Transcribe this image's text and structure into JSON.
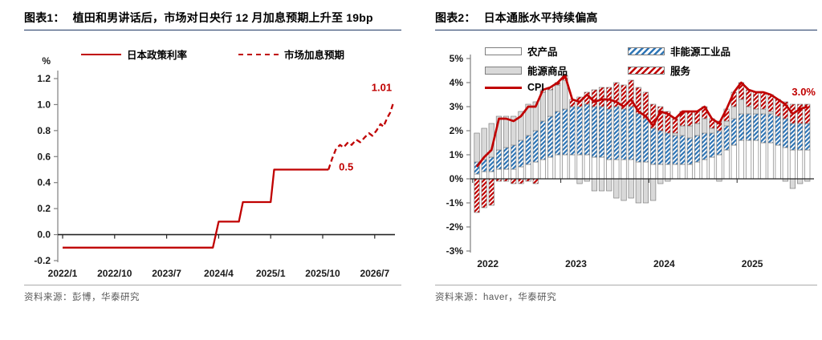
{
  "colors": {
    "red": "#C00000",
    "hatch_blue": "#2E75B6",
    "bar_gray": "#D9D9D9",
    "bar_border": "#7F7F7F",
    "axis_gray": "#808080",
    "zero_line": "#262626",
    "title_rule": "#1F3864",
    "source_text": "#595959",
    "tick_text": "#1A1A1A"
  },
  "panels": {
    "left": {
      "figure_label": "图表1：",
      "title": "植田和男讲话后，市场对日央行 12 月加息预期上升至 19bp",
      "legend": [
        {
          "label": "日本政策利率",
          "style": "solid"
        },
        {
          "label": "市场加息预期",
          "style": "dashed"
        }
      ],
      "source": "资料来源：彭博，华泰研究"
    },
    "right": {
      "figure_label": "图表2：",
      "title": "日本通胀水平持续偏高",
      "legend": [
        {
          "label": "农产品",
          "style": "white"
        },
        {
          "label": "非能源工业品",
          "style": "hatch-blue"
        },
        {
          "label": "能源商品",
          "style": "gray"
        },
        {
          "label": "服务",
          "style": "hatch-red"
        },
        {
          "label": "CPI",
          "style": "line"
        }
      ],
      "source": "资料来源：haver，华泰研究"
    }
  },
  "chart_data": [
    {
      "type": "line",
      "title": "植田和男讲话后，市场对日央行 12 月加息预期上升至 19bp",
      "ylabel": "%",
      "ylim": [
        -0.2,
        1.2
      ],
      "ytick_step": 0.2,
      "grid": false,
      "x_unit": "months since 2022/1",
      "xticks": [
        {
          "m": 0,
          "label": "2022/1"
        },
        {
          "m": 9,
          "label": "2022/10"
        },
        {
          "m": 18,
          "label": "2023/7"
        },
        {
          "m": 27,
          "label": "2024/4"
        },
        {
          "m": 36,
          "label": "2025/1"
        },
        {
          "m": 45,
          "label": "2025/10"
        },
        {
          "m": 54,
          "label": "2026/7"
        }
      ],
      "series": [
        {
          "name": "日本政策利率",
          "style": "solid",
          "color": "#C00000",
          "points": [
            [
              0,
              -0.1
            ],
            [
              26,
              -0.1
            ],
            [
              27,
              0.1
            ],
            [
              30.5,
              0.1
            ],
            [
              31.2,
              0.25
            ],
            [
              36,
              0.25
            ],
            [
              36.6,
              0.5
            ],
            [
              46,
              0.5
            ]
          ]
        },
        {
          "name": "市场加息预期",
          "style": "dashed",
          "color": "#C00000",
          "points": [
            [
              46,
              0.5
            ],
            [
              46.6,
              0.58
            ],
            [
              47.3,
              0.66
            ],
            [
              48,
              0.69
            ],
            [
              48.6,
              0.67
            ],
            [
              49.4,
              0.71
            ],
            [
              50,
              0.69
            ],
            [
              50.8,
              0.73
            ],
            [
              51.5,
              0.71
            ],
            [
              52.3,
              0.75
            ],
            [
              53,
              0.78
            ],
            [
              53.6,
              0.76
            ],
            [
              54.3,
              0.8
            ],
            [
              55,
              0.85
            ],
            [
              55.5,
              0.83
            ],
            [
              56.2,
              0.9
            ],
            [
              56.7,
              0.94
            ],
            [
              57.2,
              1.01
            ]
          ]
        }
      ],
      "annotations": [
        {
          "text": "0.5",
          "m": 47.8,
          "v": 0.52,
          "anchor": "start"
        },
        {
          "text": "1.01",
          "m": 55.2,
          "v": 1.13,
          "anchor": "middle"
        }
      ]
    },
    {
      "type": "stacked_bar_line",
      "title": "日本通胀水平持续偏高",
      "ylim": [
        -3,
        5
      ],
      "ytick_step": 1,
      "ytick_suffix": "%",
      "grid": false,
      "x_start": "2022-01",
      "x_freq": "monthly",
      "n_points": 46,
      "xticks": [
        {
          "i": 0,
          "label": "2022"
        },
        {
          "i": 12,
          "label": "2023"
        },
        {
          "i": 24,
          "label": "2024"
        },
        {
          "i": 36,
          "label": "2025"
        }
      ],
      "series": [
        {
          "name": "农产品",
          "type": "bar",
          "style": "white",
          "values": [
            0.2,
            0.3,
            0.3,
            0.4,
            0.4,
            0.4,
            0.5,
            0.6,
            0.7,
            0.8,
            0.9,
            1.0,
            1.0,
            1.0,
            1.0,
            1.0,
            0.9,
            0.9,
            0.8,
            0.8,
            0.8,
            0.8,
            0.7,
            0.7,
            0.6,
            0.6,
            0.6,
            0.6,
            0.6,
            0.6,
            0.7,
            0.8,
            0.9,
            1.0,
            1.2,
            1.4,
            1.6,
            1.6,
            1.6,
            1.5,
            1.5,
            1.4,
            1.3,
            1.2,
            1.2,
            1.2
          ]
        },
        {
          "name": "非能源工业品",
          "type": "bar",
          "style": "hatch-blue",
          "values": [
            0.5,
            0.5,
            0.6,
            0.8,
            0.9,
            1.0,
            1.1,
            1.2,
            1.3,
            1.6,
            1.7,
            1.8,
            1.9,
            2.0,
            2.0,
            2.1,
            2.1,
            2.1,
            2.1,
            2.2,
            2.1,
            2.2,
            2.0,
            1.8,
            1.5,
            1.4,
            1.3,
            1.2,
            1.2,
            1.1,
            1.1,
            1.1,
            1.0,
            1.0,
            1.0,
            1.1,
            1.1,
            1.1,
            1.1,
            1.2,
            1.2,
            1.2,
            1.2,
            1.1,
            1.1,
            1.1
          ]
        },
        {
          "name": "能源商品",
          "type": "bar",
          "style": "gray",
          "values": [
            1.2,
            1.3,
            1.4,
            1.4,
            1.3,
            1.2,
            1.2,
            1.3,
            1.2,
            1.2,
            1.1,
            1.1,
            1.2,
            0.0,
            -0.2,
            -0.1,
            -0.5,
            -0.5,
            -0.5,
            -0.8,
            -0.9,
            -0.8,
            -1.0,
            -1.0,
            -0.9,
            -0.2,
            -0.1,
            0.1,
            0.4,
            0.5,
            0.5,
            0.6,
            0.2,
            -0.1,
            0.2,
            0.5,
            0.6,
            0.3,
            0.2,
            0.2,
            0.1,
            0.0,
            -0.1,
            -0.4,
            -0.2,
            -0.1
          ]
        },
        {
          "name": "服务",
          "type": "bar",
          "style": "hatch-red",
          "values": [
            -1.4,
            -1.2,
            -1.1,
            -0.1,
            -0.1,
            -0.2,
            -0.2,
            -0.1,
            -0.2,
            0.1,
            0.1,
            0.1,
            0.2,
            0.3,
            0.4,
            0.5,
            0.7,
            0.8,
            0.9,
            1.0,
            1.0,
            1.1,
            1.1,
            1.1,
            1.0,
            1.0,
            0.9,
            0.6,
            0.6,
            0.6,
            0.5,
            0.5,
            0.4,
            0.4,
            0.5,
            0.6,
            0.7,
            0.7,
            0.7,
            0.7,
            0.7,
            0.7,
            0.7,
            0.8,
            0.8,
            0.8
          ]
        },
        {
          "name": "CPI",
          "type": "line",
          "color": "#C00000",
          "values": [
            0.5,
            0.9,
            1.2,
            2.5,
            2.5,
            2.4,
            2.6,
            3.0,
            3.0,
            3.7,
            3.8,
            4.0,
            4.3,
            3.3,
            3.2,
            3.5,
            3.2,
            3.3,
            3.3,
            3.2,
            3.0,
            3.3,
            2.8,
            2.6,
            2.2,
            2.8,
            2.7,
            2.5,
            2.8,
            2.8,
            2.8,
            3.0,
            2.5,
            2.3,
            2.9,
            3.6,
            4.0,
            3.7,
            3.6,
            3.6,
            3.5,
            3.3,
            3.1,
            2.7,
            2.9,
            3.0
          ]
        }
      ],
      "annotations": [
        {
          "text": "3.0%"
        }
      ]
    }
  ]
}
